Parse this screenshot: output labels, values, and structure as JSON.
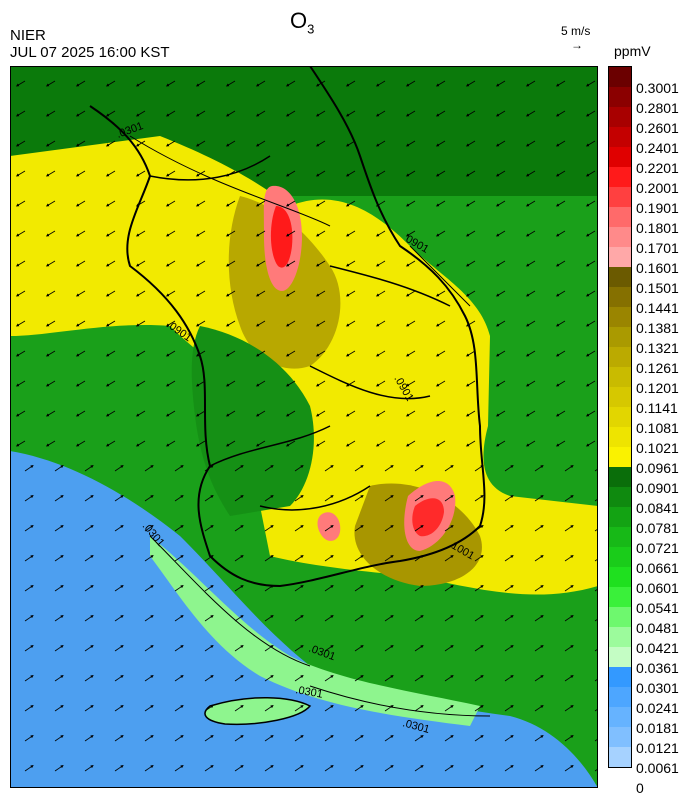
{
  "header": {
    "title_main": "O",
    "title_sub": "3",
    "org": "NIER",
    "datetime": "JUL 07 2025 16:00 KST",
    "wind_ref": "5 m/s",
    "wind_arrow": "→",
    "unit": "ppmV"
  },
  "colorbar": {
    "labels": [
      "0.3001",
      "0.2801",
      "0.2601",
      "0.2401",
      "0.2201",
      "0.2001",
      "0.1901",
      "0.1801",
      "0.1701",
      "0.1601",
      "0.1501",
      "0.1441",
      "0.1381",
      "0.1321",
      "0.1261",
      "0.1201",
      "0.1141",
      "0.1081",
      "0.1021",
      "0.0961",
      "0.0901",
      "0.0841",
      "0.0781",
      "0.0721",
      "0.0661",
      "0.0601",
      "0.0541",
      "0.0481",
      "0.0421",
      "0.0361",
      "0.0301",
      "0.0241",
      "0.0181",
      "0.0121",
      "0.0061",
      "0"
    ],
    "colors": [
      "#6b0000",
      "#8b0000",
      "#a80000",
      "#c40000",
      "#e00000",
      "#ff1a1a",
      "#ff4040",
      "#ff6a6a",
      "#ff8a8a",
      "#ffa8a8",
      "#6b5a00",
      "#857000",
      "#9a8500",
      "#aa9a00",
      "#bbaa00",
      "#c9bb00",
      "#d6c800",
      "#e2d600",
      "#eee400",
      "#faf200",
      "#0a6e0a",
      "#0f8a0f",
      "#13a313",
      "#17b917",
      "#1acc1a",
      "#1fe01f",
      "#3af03a",
      "#6ef86e",
      "#9cfb9c",
      "#c4fdc4",
      "#3399ff",
      "#4da6ff",
      "#66b3ff",
      "#80bfff",
      "#a6d2ff"
    ]
  },
  "map": {
    "contour_labels": [
      ".0301",
      ".0901",
      "0901",
      ".0301",
      ".0301",
      ".0301",
      ".0301",
      ".0901",
      ".1001"
    ]
  }
}
